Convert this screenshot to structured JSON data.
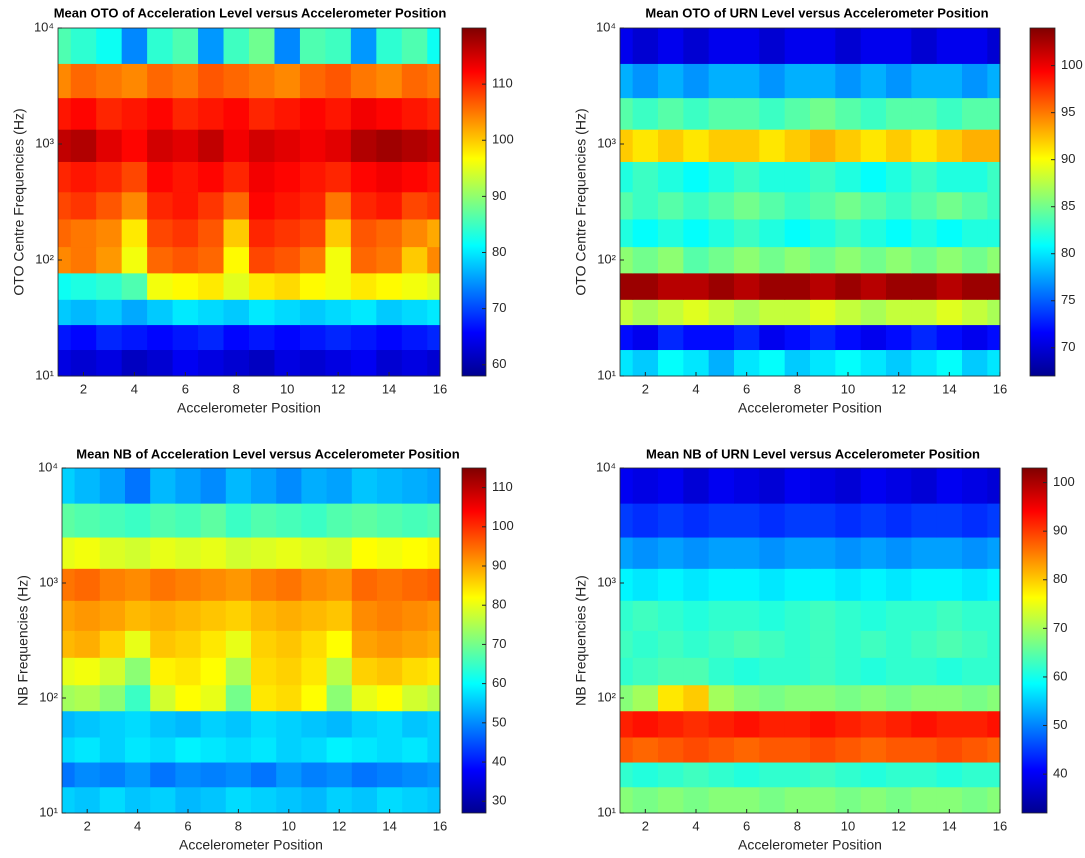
{
  "chart_data": [
    {
      "type": "heatmap",
      "title": "Mean OTO of Acceleration Level versus Accelerometer Position",
      "xlabel": "Accelerometer Position",
      "ylabel": "OTO Centre Frequencies (Hz)",
      "x": [
        1,
        2,
        3,
        4,
        5,
        6,
        7,
        8,
        9,
        10,
        11,
        12,
        13,
        14,
        15,
        16
      ],
      "y": [
        13,
        22,
        35,
        60,
        100,
        170,
        300,
        500,
        1000,
        1800,
        3500,
        7000
      ],
      "z": [
        [
          64,
          63,
          64,
          62,
          63,
          65,
          64,
          63,
          62,
          64,
          63,
          64,
          65,
          63,
          64,
          63
        ],
        [
          67,
          66,
          68,
          67,
          66,
          67,
          68,
          66,
          67,
          66,
          67,
          68,
          67,
          66,
          67,
          68
        ],
        [
          78,
          77,
          78,
          76,
          78,
          80,
          79,
          78,
          80,
          79,
          78,
          79,
          80,
          78,
          79,
          80
        ],
        [
          82,
          83,
          84,
          86,
          96,
          97,
          98,
          95,
          98,
          99,
          97,
          96,
          98,
          97,
          96,
          95
        ],
        [
          104,
          105,
          103,
          96,
          106,
          107,
          106,
          97,
          108,
          107,
          105,
          96,
          106,
          105,
          100,
          104
        ],
        [
          106,
          105,
          104,
          98,
          108,
          109,
          107,
          100,
          110,
          109,
          108,
          100,
          107,
          106,
          104,
          102
        ],
        [
          108,
          109,
          107,
          104,
          110,
          111,
          109,
          106,
          112,
          111,
          110,
          105,
          110,
          111,
          108,
          109
        ],
        [
          110,
          111,
          110,
          108,
          112,
          111,
          112,
          110,
          113,
          112,
          111,
          110,
          112,
          113,
          112,
          111
        ],
        [
          116,
          117,
          114,
          112,
          115,
          114,
          116,
          113,
          115,
          114,
          113,
          114,
          117,
          118,
          117,
          116
        ],
        [
          111,
          112,
          110,
          111,
          112,
          110,
          111,
          112,
          110,
          111,
          112,
          111,
          113,
          112,
          111,
          110
        ],
        [
          104,
          106,
          105,
          104,
          106,
          105,
          107,
          106,
          105,
          104,
          106,
          107,
          105,
          104,
          106,
          105
        ],
        [
          86,
          84,
          82,
          74,
          84,
          86,
          75,
          85,
          88,
          74,
          86,
          85,
          75,
          84,
          86,
          82
        ]
      ],
      "xlim": [
        1,
        16
      ],
      "xticks": [
        2,
        4,
        6,
        8,
        10,
        12,
        14,
        16
      ],
      "ylim": [
        10,
        10000
      ],
      "ylog": true,
      "yticks": [
        {
          "value": 10,
          "label": "10¹"
        },
        {
          "value": 100,
          "label": "10²"
        },
        {
          "value": 1000,
          "label": "10³"
        },
        {
          "value": 10000,
          "label": "10⁴"
        }
      ],
      "colormap": "jet",
      "clim": [
        58,
        120
      ],
      "cticks": [
        60,
        70,
        80,
        90,
        100,
        110
      ]
    },
    {
      "type": "heatmap",
      "title": "Mean OTO of URN Level versus Accelerometer Position",
      "xlabel": "Accelerometer Position",
      "ylabel": "OTO Centre Frequencies (Hz)",
      "x": [
        1,
        2,
        3,
        4,
        5,
        6,
        7,
        8,
        9,
        10,
        11,
        12,
        13,
        14,
        15,
        16
      ],
      "y": [
        13,
        22,
        35,
        60,
        100,
        170,
        300,
        500,
        1000,
        1800,
        3500,
        7000
      ],
      "z": [
        [
          80,
          79,
          81,
          80,
          78,
          80,
          81,
          79,
          80,
          81,
          80,
          79,
          80,
          81,
          79,
          80
        ],
        [
          72,
          71,
          73,
          72,
          72,
          73,
          71,
          72,
          73,
          72,
          71,
          72,
          73,
          72,
          71,
          72
        ],
        [
          88,
          87,
          88,
          89,
          88,
          87,
          88,
          88,
          89,
          88,
          87,
          88,
          88,
          89,
          88,
          87
        ],
        [
          103,
          103,
          102,
          102,
          103,
          102,
          103,
          103,
          102,
          103,
          102,
          103,
          103,
          102,
          103,
          103
        ],
        [
          86,
          85,
          86,
          84,
          85,
          86,
          85,
          86,
          85,
          86,
          85,
          86,
          85,
          86,
          85,
          86
        ],
        [
          82,
          81,
          82,
          81,
          82,
          83,
          82,
          81,
          82,
          83,
          82,
          81,
          82,
          81,
          82,
          82
        ],
        [
          84,
          83,
          84,
          83,
          84,
          85,
          84,
          83,
          84,
          85,
          84,
          83,
          84,
          85,
          84,
          83
        ],
        [
          82,
          83,
          82,
          81,
          82,
          83,
          82,
          82,
          83,
          82,
          81,
          82,
          83,
          82,
          82,
          83
        ],
        [
          92,
          91,
          92,
          91,
          92,
          92,
          91,
          92,
          93,
          92,
          91,
          92,
          91,
          92,
          93,
          93
        ],
        [
          84,
          83,
          84,
          83,
          84,
          84,
          83,
          84,
          85,
          84,
          83,
          84,
          84,
          83,
          84,
          84
        ],
        [
          78,
          77,
          78,
          77,
          78,
          78,
          77,
          78,
          78,
          77,
          78,
          77,
          78,
          78,
          77,
          78
        ],
        [
          71,
          70,
          71,
          70,
          71,
          71,
          70,
          71,
          71,
          70,
          71,
          71,
          70,
          71,
          71,
          70
        ]
      ],
      "xlim": [
        1,
        16
      ],
      "xticks": [
        2,
        4,
        6,
        8,
        10,
        12,
        14,
        16
      ],
      "ylim": [
        10,
        10000
      ],
      "ylog": true,
      "yticks": [
        {
          "value": 10,
          "label": "10¹"
        },
        {
          "value": 100,
          "label": "10²"
        },
        {
          "value": 1000,
          "label": "10³"
        },
        {
          "value": 10000,
          "label": "10⁴"
        }
      ],
      "colormap": "jet",
      "clim": [
        67,
        104
      ],
      "cticks": [
        70,
        75,
        80,
        85,
        90,
        95,
        100
      ]
    },
    {
      "type": "heatmap",
      "title": "Mean NB of Acceleration Level versus Accelerometer Position",
      "xlabel": "Accelerometer Position",
      "ylabel": "NB Frequencies (Hz)",
      "x": [
        1,
        2,
        3,
        4,
        5,
        6,
        7,
        8,
        9,
        10,
        11,
        12,
        13,
        14,
        15,
        16
      ],
      "y": [
        13,
        22,
        35,
        60,
        100,
        170,
        300,
        500,
        1000,
        1800,
        3500,
        7000
      ],
      "z": [
        [
          56,
          55,
          57,
          55,
          56,
          54,
          55,
          57,
          56,
          55,
          54,
          56,
          55,
          57,
          56,
          55
        ],
        [
          48,
          50,
          49,
          51,
          48,
          50,
          49,
          50,
          48,
          51,
          49,
          50,
          48,
          49,
          50,
          51
        ],
        [
          57,
          58,
          56,
          58,
          57,
          59,
          58,
          57,
          58,
          56,
          57,
          59,
          58,
          57,
          58,
          56
        ],
        [
          54,
          55,
          56,
          57,
          55,
          54,
          56,
          55,
          57,
          56,
          55,
          54,
          56,
          57,
          55,
          56
        ],
        [
          74,
          75,
          72,
          65,
          78,
          82,
          80,
          70,
          84,
          85,
          82,
          72,
          80,
          82,
          78,
          76
        ],
        [
          80,
          81,
          78,
          72,
          83,
          84,
          82,
          75,
          85,
          86,
          84,
          76,
          86,
          87,
          85,
          84
        ],
        [
          88,
          89,
          86,
          80,
          87,
          86,
          84,
          80,
          86,
          87,
          85,
          82,
          90,
          91,
          90,
          89
        ],
        [
          90,
          91,
          90,
          88,
          89,
          88,
          87,
          86,
          88,
          89,
          88,
          87,
          92,
          93,
          92,
          91
        ],
        [
          94,
          95,
          93,
          92,
          94,
          93,
          92,
          91,
          93,
          94,
          92,
          91,
          95,
          94,
          95,
          96
        ],
        [
          80,
          81,
          79,
          78,
          80,
          79,
          80,
          78,
          79,
          80,
          79,
          78,
          82,
          81,
          82,
          83
        ],
        [
          68,
          67,
          66,
          65,
          67,
          66,
          68,
          65,
          67,
          66,
          65,
          67,
          68,
          67,
          66,
          67
        ],
        [
          56,
          54,
          52,
          48,
          54,
          52,
          50,
          54,
          52,
          50,
          53,
          52,
          55,
          54,
          53,
          52
        ]
      ],
      "xlim": [
        1,
        16
      ],
      "xticks": [
        2,
        4,
        6,
        8,
        10,
        12,
        14,
        16
      ],
      "ylim": [
        10,
        10000
      ],
      "ylog": true,
      "yticks": [
        {
          "value": 10,
          "label": "10¹"
        },
        {
          "value": 100,
          "label": "10²"
        },
        {
          "value": 1000,
          "label": "10³"
        },
        {
          "value": 10000,
          "label": "10⁴"
        }
      ],
      "colormap": "jet",
      "clim": [
        27,
        115
      ],
      "cticks": [
        30,
        40,
        50,
        60,
        70,
        80,
        90,
        100,
        110
      ]
    },
    {
      "type": "heatmap",
      "title": "Mean NB of URN Level versus Accelerometer Position",
      "xlabel": "Accelerometer Position",
      "ylabel": "NB Frequencies (Hz)",
      "x": [
        1,
        2,
        3,
        4,
        5,
        6,
        7,
        8,
        9,
        10,
        11,
        12,
        13,
        14,
        15,
        16
      ],
      "y": [
        13,
        22,
        35,
        60,
        100,
        170,
        300,
        500,
        1000,
        1800,
        3500,
        7000
      ],
      "z": [
        [
          68,
          67,
          68,
          67,
          68,
          68,
          67,
          68,
          68,
          67,
          68,
          67,
          68,
          68,
          67,
          68
        ],
        [
          62,
          61,
          62,
          63,
          62,
          61,
          62,
          62,
          63,
          62,
          61,
          62,
          62,
          61,
          62,
          62
        ],
        [
          88,
          87,
          88,
          89,
          88,
          87,
          88,
          88,
          89,
          88,
          87,
          88,
          88,
          89,
          88,
          87
        ],
        [
          92,
          93,
          92,
          91,
          92,
          93,
          92,
          92,
          93,
          92,
          91,
          92,
          93,
          92,
          92,
          93
        ],
        [
          68,
          70,
          78,
          80,
          70,
          68,
          67,
          68,
          68,
          67,
          68,
          67,
          68,
          68,
          67,
          68
        ],
        [
          62,
          63,
          64,
          64,
          62,
          61,
          62,
          62,
          63,
          62,
          61,
          62,
          62,
          61,
          62,
          62
        ],
        [
          63,
          62,
          63,
          62,
          63,
          64,
          63,
          62,
          63,
          62,
          63,
          62,
          63,
          64,
          63,
          62
        ],
        [
          62,
          63,
          62,
          61,
          62,
          62,
          61,
          62,
          63,
          62,
          61,
          62,
          62,
          63,
          62,
          62
        ],
        [
          58,
          57,
          58,
          57,
          58,
          58,
          57,
          58,
          58,
          57,
          58,
          57,
          58,
          58,
          57,
          58
        ],
        [
          52,
          51,
          52,
          51,
          52,
          52,
          51,
          52,
          52,
          51,
          52,
          51,
          52,
          52,
          51,
          52
        ],
        [
          45,
          44,
          45,
          44,
          45,
          45,
          44,
          45,
          45,
          44,
          45,
          44,
          45,
          45,
          44,
          45
        ],
        [
          40,
          39,
          40,
          38,
          40,
          39,
          38,
          40,
          39,
          38,
          40,
          39,
          38,
          40,
          39,
          38
        ]
      ],
      "xlim": [
        1,
        16
      ],
      "xticks": [
        2,
        4,
        6,
        8,
        10,
        12,
        14,
        16
      ],
      "ylim": [
        10,
        10000
      ],
      "ylog": true,
      "yticks": [
        {
          "value": 10,
          "label": "10¹"
        },
        {
          "value": 100,
          "label": "10²"
        },
        {
          "value": 1000,
          "label": "10³"
        },
        {
          "value": 10000,
          "label": "10⁴"
        }
      ],
      "colormap": "jet",
      "clim": [
        32,
        103
      ],
      "cticks": [
        40,
        50,
        60,
        70,
        80,
        90,
        100
      ]
    }
  ]
}
